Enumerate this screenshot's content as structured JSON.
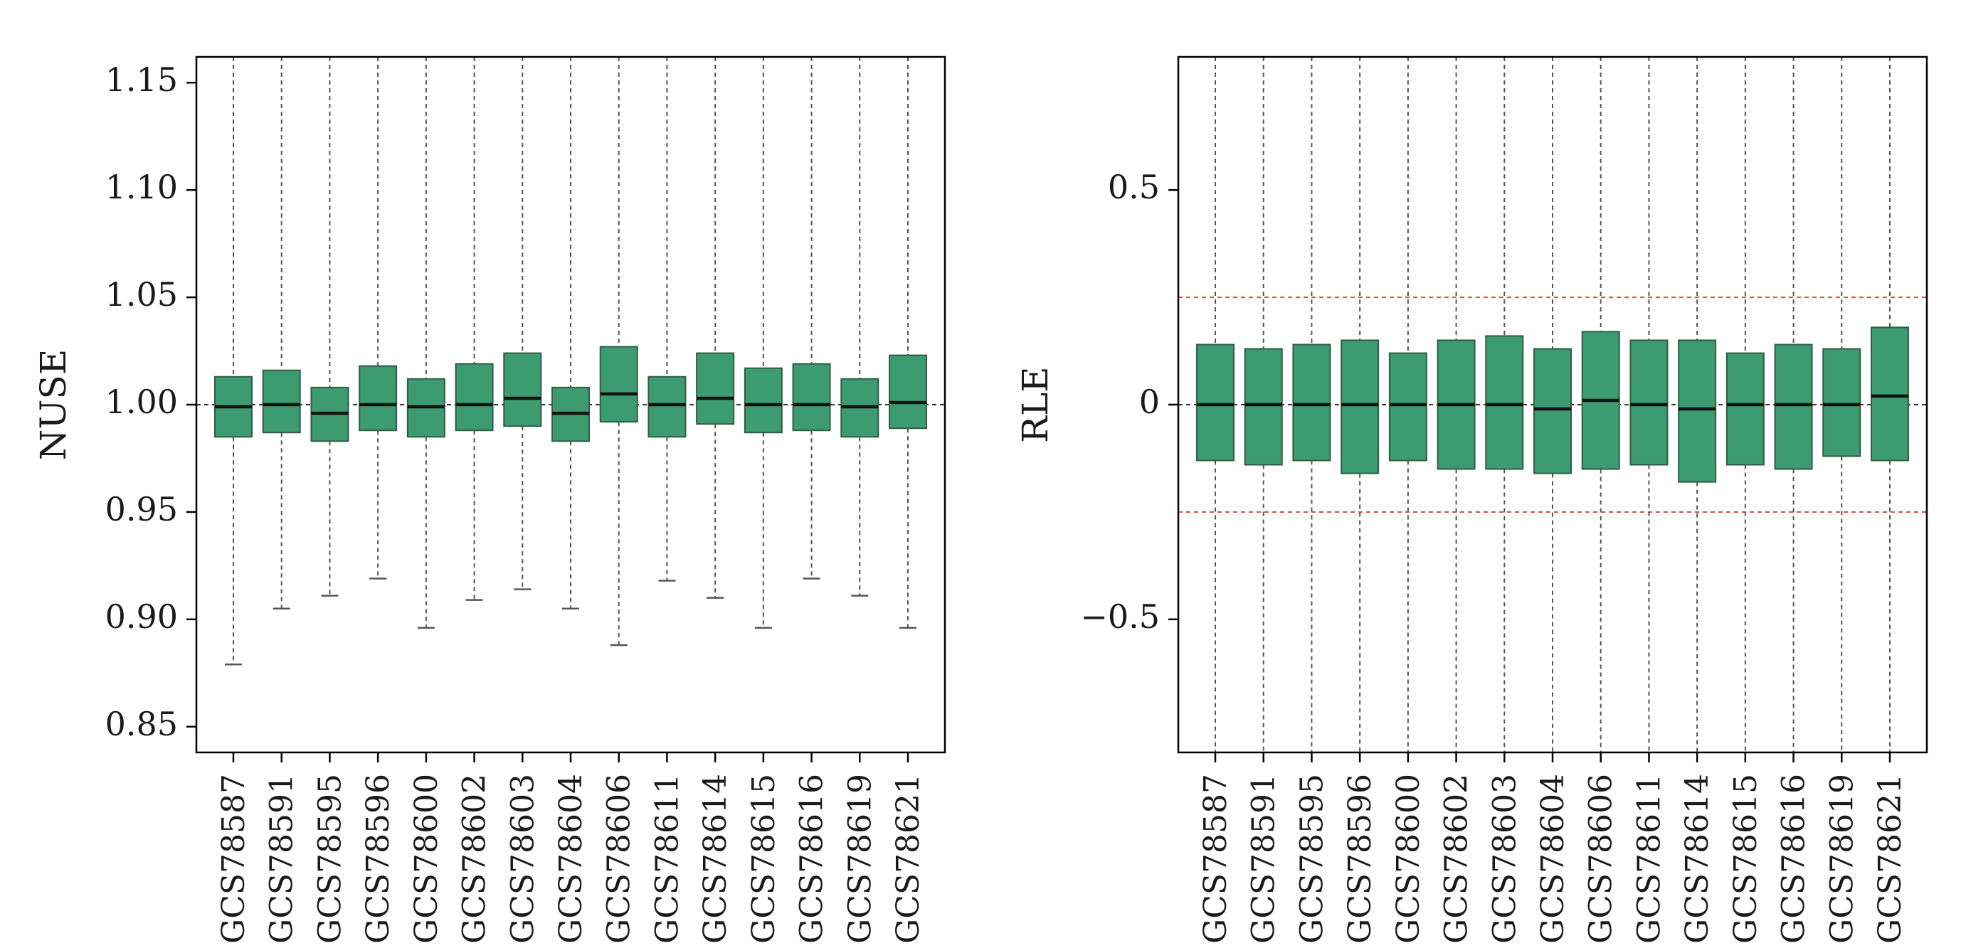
{
  "colors": {
    "box_fill": "#3d9b72",
    "box_stroke": "#2f5d45",
    "median": "#111111",
    "whisker": "#555555",
    "reference_line": "#333333",
    "threshold_line": "#d9534f",
    "frame": "#000000"
  },
  "chart_data": [
    {
      "type": "box",
      "title": "",
      "ylabel": "NUSE",
      "xlabel": "",
      "ylim": [
        0.838,
        1.162
      ],
      "yticks": [
        0.85,
        0.9,
        0.95,
        1.0,
        1.05,
        1.1,
        1.15
      ],
      "ytick_labels": [
        "0.85",
        "0.90",
        "0.95",
        "1.00",
        "1.05",
        "1.10",
        "1.15"
      ],
      "reference_line": 1.0,
      "categories": [
        "GCS78587",
        "GCS78591",
        "GCS78595",
        "GCS78596",
        "GCS78600",
        "GCS78602",
        "GCS78603",
        "GCS78604",
        "GCS78606",
        "GCS78611",
        "GCS78614",
        "GCS78615",
        "GCS78616",
        "GCS78619",
        "GCS78621"
      ],
      "boxes": [
        {
          "low": 0.879,
          "q1": 0.985,
          "median": 0.999,
          "q3": 1.013,
          "high": 1.162
        },
        {
          "low": 0.905,
          "q1": 0.987,
          "median": 1.0,
          "q3": 1.016,
          "high": 1.162
        },
        {
          "low": 0.911,
          "q1": 0.983,
          "median": 0.996,
          "q3": 1.008,
          "high": 1.162
        },
        {
          "low": 0.919,
          "q1": 0.988,
          "median": 1.0,
          "q3": 1.018,
          "high": 1.162
        },
        {
          "low": 0.896,
          "q1": 0.985,
          "median": 0.999,
          "q3": 1.012,
          "high": 1.162
        },
        {
          "low": 0.909,
          "q1": 0.988,
          "median": 1.0,
          "q3": 1.019,
          "high": 1.162
        },
        {
          "low": 0.914,
          "q1": 0.99,
          "median": 1.003,
          "q3": 1.024,
          "high": 1.162
        },
        {
          "low": 0.905,
          "q1": 0.983,
          "median": 0.996,
          "q3": 1.008,
          "high": 1.162
        },
        {
          "low": 0.888,
          "q1": 0.992,
          "median": 1.005,
          "q3": 1.027,
          "high": 1.162
        },
        {
          "low": 0.918,
          "q1": 0.985,
          "median": 1.0,
          "q3": 1.013,
          "high": 1.162
        },
        {
          "low": 0.91,
          "q1": 0.991,
          "median": 1.003,
          "q3": 1.024,
          "high": 1.162
        },
        {
          "low": 0.896,
          "q1": 0.987,
          "median": 1.0,
          "q3": 1.017,
          "high": 1.162
        },
        {
          "low": 0.919,
          "q1": 0.988,
          "median": 1.0,
          "q3": 1.019,
          "high": 1.162
        },
        {
          "low": 0.911,
          "q1": 0.985,
          "median": 0.999,
          "q3": 1.012,
          "high": 1.162
        },
        {
          "low": 0.896,
          "q1": 0.989,
          "median": 1.001,
          "q3": 1.023,
          "high": 1.162
        }
      ],
      "grid": false,
      "legend": "none"
    },
    {
      "type": "box",
      "title": "",
      "ylabel": "RLE",
      "xlabel": "",
      "ylim": [
        -0.81,
        0.81
      ],
      "yticks": [
        -0.5,
        0,
        0.5
      ],
      "ytick_labels": [
        "−0.5",
        "0",
        "0.5"
      ],
      "reference_line": 0,
      "threshold_lines": [
        0.25,
        -0.25
      ],
      "categories": [
        "GCS78587",
        "GCS78591",
        "GCS78595",
        "GCS78596",
        "GCS78600",
        "GCS78602",
        "GCS78603",
        "GCS78604",
        "GCS78606",
        "GCS78611",
        "GCS78614",
        "GCS78615",
        "GCS78616",
        "GCS78619",
        "GCS78621"
      ],
      "boxes": [
        {
          "low": -0.81,
          "q1": -0.13,
          "median": 0.0,
          "q3": 0.14,
          "high": 0.81
        },
        {
          "low": -0.81,
          "q1": -0.14,
          "median": 0.0,
          "q3": 0.13,
          "high": 0.81
        },
        {
          "low": -0.81,
          "q1": -0.13,
          "median": 0.0,
          "q3": 0.14,
          "high": 0.81
        },
        {
          "low": -0.81,
          "q1": -0.16,
          "median": 0.0,
          "q3": 0.15,
          "high": 0.81
        },
        {
          "low": -0.81,
          "q1": -0.13,
          "median": 0.0,
          "q3": 0.12,
          "high": 0.81
        },
        {
          "low": -0.81,
          "q1": -0.15,
          "median": 0.0,
          "q3": 0.15,
          "high": 0.81
        },
        {
          "low": -0.81,
          "q1": -0.15,
          "median": 0.0,
          "q3": 0.16,
          "high": 0.81
        },
        {
          "low": -0.81,
          "q1": -0.16,
          "median": -0.01,
          "q3": 0.13,
          "high": 0.81
        },
        {
          "low": -0.81,
          "q1": -0.15,
          "median": 0.01,
          "q3": 0.17,
          "high": 0.81
        },
        {
          "low": -0.81,
          "q1": -0.14,
          "median": 0.0,
          "q3": 0.15,
          "high": 0.81
        },
        {
          "low": -0.81,
          "q1": -0.18,
          "median": -0.01,
          "q3": 0.15,
          "high": 0.81
        },
        {
          "low": -0.81,
          "q1": -0.14,
          "median": 0.0,
          "q3": 0.12,
          "high": 0.81
        },
        {
          "low": -0.81,
          "q1": -0.15,
          "median": 0.0,
          "q3": 0.14,
          "high": 0.81
        },
        {
          "low": -0.81,
          "q1": -0.12,
          "median": 0.0,
          "q3": 0.13,
          "high": 0.81
        },
        {
          "low": -0.81,
          "q1": -0.13,
          "median": 0.02,
          "q3": 0.18,
          "high": 0.81
        }
      ],
      "grid": false,
      "legend": "none"
    }
  ]
}
